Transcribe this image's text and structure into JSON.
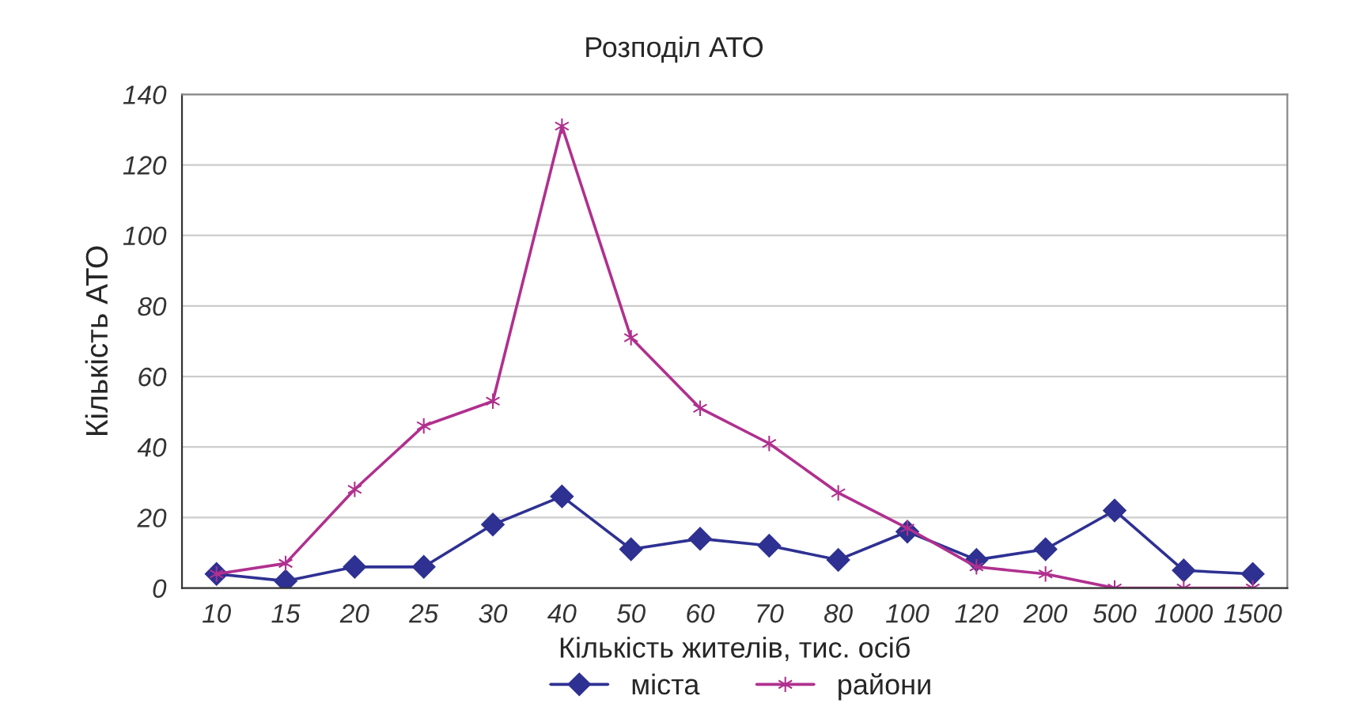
{
  "chart_data": {
    "type": "line",
    "title": "Розподіл АТО",
    "xlabel": "Кількість жителів, тис. осіб",
    "ylabel": "Кількість АТО",
    "categories": [
      "10",
      "15",
      "20",
      "25",
      "30",
      "40",
      "50",
      "60",
      "70",
      "80",
      "100",
      "120",
      "200",
      "500",
      "1000",
      "1500"
    ],
    "series": [
      {
        "name": "міста",
        "color": "#2e3192",
        "marker": "diamond",
        "values": [
          4,
          2,
          6,
          6,
          18,
          26,
          11,
          14,
          12,
          8,
          16,
          8,
          11,
          22,
          5,
          4
        ]
      },
      {
        "name": "райони",
        "color": "#b0308f",
        "marker": "cross",
        "values": [
          4,
          7,
          28,
          46,
          53,
          131,
          71,
          51,
          41,
          27,
          17,
          6,
          4,
          0,
          0,
          0
        ]
      }
    ],
    "ylim": [
      0,
      140
    ],
    "yticks": [
      0,
      20,
      40,
      60,
      80,
      100,
      120,
      140
    ],
    "grid": "y",
    "legend": "bottom"
  }
}
